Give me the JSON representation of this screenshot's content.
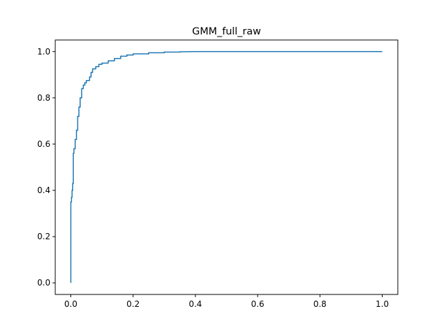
{
  "chart_data": {
    "type": "line",
    "title": "GMM_full_raw",
    "xlabel": "",
    "ylabel": "",
    "xlim": [
      -0.05,
      1.05
    ],
    "ylim": [
      -0.05,
      1.05
    ],
    "grid": false,
    "line_color": "#1f77b4",
    "xticks": [
      0.0,
      0.2,
      0.4,
      0.6,
      0.8,
      1.0
    ],
    "xtick_labels": [
      "0.0",
      "0.2",
      "0.4",
      "0.6",
      "0.8",
      "1.0"
    ],
    "yticks": [
      0.0,
      0.2,
      0.4,
      0.6,
      0.8,
      1.0
    ],
    "ytick_labels": [
      "0.0",
      "0.2",
      "0.4",
      "0.6",
      "0.8",
      "1.0"
    ],
    "series": [
      {
        "x": [
          0.0,
          0.0,
          0.002,
          0.002,
          0.004,
          0.004,
          0.006,
          0.006,
          0.008,
          0.008,
          0.01,
          0.01,
          0.014,
          0.014,
          0.018,
          0.018,
          0.022,
          0.022,
          0.026,
          0.026,
          0.03,
          0.03,
          0.035,
          0.035,
          0.04,
          0.04,
          0.045,
          0.045,
          0.05,
          0.05,
          0.06,
          0.06,
          0.065,
          0.065,
          0.07,
          0.07,
          0.08,
          0.08,
          0.09,
          0.09,
          0.1,
          0.1,
          0.12,
          0.12,
          0.14,
          0.14,
          0.16,
          0.16,
          0.18,
          0.18,
          0.2,
          0.2,
          0.25,
          0.25,
          0.3,
          0.3,
          0.35,
          0.35,
          0.4,
          1.0
        ],
        "y": [
          0.0,
          0.35,
          0.35,
          0.37,
          0.37,
          0.4,
          0.4,
          0.43,
          0.43,
          0.56,
          0.56,
          0.58,
          0.58,
          0.62,
          0.62,
          0.66,
          0.66,
          0.72,
          0.72,
          0.76,
          0.76,
          0.8,
          0.8,
          0.84,
          0.84,
          0.855,
          0.855,
          0.865,
          0.865,
          0.875,
          0.875,
          0.89,
          0.89,
          0.91,
          0.91,
          0.925,
          0.925,
          0.935,
          0.935,
          0.945,
          0.945,
          0.95,
          0.95,
          0.96,
          0.96,
          0.97,
          0.97,
          0.98,
          0.98,
          0.985,
          0.985,
          0.99,
          0.99,
          0.995,
          0.995,
          0.998,
          0.998,
          0.999,
          1.0,
          1.0
        ]
      }
    ]
  }
}
